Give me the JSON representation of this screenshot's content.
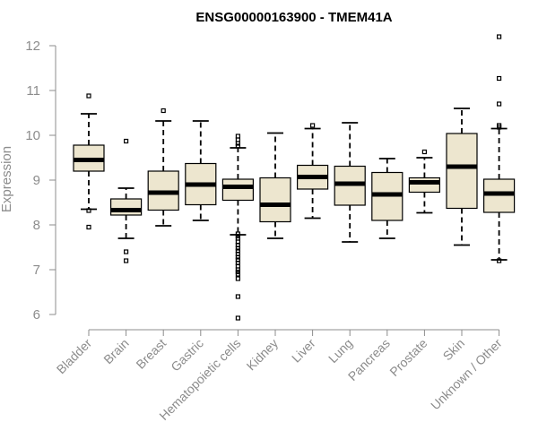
{
  "chart_data": {
    "type": "boxplot",
    "title": "ENSG00000163900 - TMEM41A",
    "xlabel": "",
    "ylabel": "Expression",
    "ylim": [
      6,
      12
    ],
    "yticks": [
      6,
      7,
      8,
      9,
      10,
      11,
      12
    ],
    "categories": [
      "Bladder",
      "Brain",
      "Breast",
      "Gastric",
      "Hematopoietic cells",
      "Kidney",
      "Liver",
      "Lung",
      "Pancreas",
      "Prostate",
      "Skin",
      "Unknown / Other"
    ],
    "box_color": "#ede6cf",
    "series": [
      {
        "name": "Bladder",
        "min": 8.35,
        "q1": 9.2,
        "median": 9.45,
        "q3": 9.78,
        "max": 10.48,
        "outliers": [
          10.88,
          8.32,
          7.95
        ]
      },
      {
        "name": "Brain",
        "min": 7.7,
        "q1": 8.22,
        "median": 8.33,
        "q3": 8.58,
        "max": 8.82,
        "outliers": [
          9.87,
          7.4,
          7.2
        ]
      },
      {
        "name": "Breast",
        "min": 7.98,
        "q1": 8.33,
        "median": 8.72,
        "q3": 9.2,
        "max": 10.32,
        "outliers": [
          10.55
        ]
      },
      {
        "name": "Gastric",
        "min": 8.1,
        "q1": 8.45,
        "median": 8.9,
        "q3": 9.37,
        "max": 10.32,
        "outliers": []
      },
      {
        "name": "Hematopoietic cells",
        "min": 7.78,
        "q1": 8.55,
        "median": 8.85,
        "q3": 9.02,
        "max": 9.72,
        "outliers": [
          9.98,
          9.9,
          9.82,
          9.76,
          7.8,
          7.75,
          7.7,
          7.62,
          7.55,
          7.48,
          7.42,
          7.35,
          7.28,
          7.22,
          7.15,
          7.08,
          7.0,
          6.95,
          6.9,
          6.8,
          6.4,
          5.92
        ]
      },
      {
        "name": "Kidney",
        "min": 7.7,
        "q1": 8.07,
        "median": 8.45,
        "q3": 9.05,
        "max": 10.05,
        "outliers": []
      },
      {
        "name": "Liver",
        "min": 8.15,
        "q1": 8.8,
        "median": 9.07,
        "q3": 9.33,
        "max": 10.15,
        "outliers": [
          10.22
        ]
      },
      {
        "name": "Lung",
        "min": 7.62,
        "q1": 8.44,
        "median": 8.92,
        "q3": 9.31,
        "max": 10.28,
        "outliers": []
      },
      {
        "name": "Pancreas",
        "min": 7.7,
        "q1": 8.1,
        "median": 8.68,
        "q3": 9.17,
        "max": 9.48,
        "outliers": []
      },
      {
        "name": "Prostate",
        "min": 8.27,
        "q1": 8.73,
        "median": 8.95,
        "q3": 9.05,
        "max": 9.5,
        "outliers": [
          9.63
        ]
      },
      {
        "name": "Skin",
        "min": 7.55,
        "q1": 8.37,
        "median": 9.3,
        "q3": 10.04,
        "max": 10.6,
        "outliers": []
      },
      {
        "name": "Unknown / Other",
        "min": 7.22,
        "q1": 8.28,
        "median": 8.7,
        "q3": 9.02,
        "max": 10.15,
        "outliers": [
          12.2,
          11.27,
          10.7,
          10.22,
          10.18,
          7.2
        ]
      }
    ]
  }
}
